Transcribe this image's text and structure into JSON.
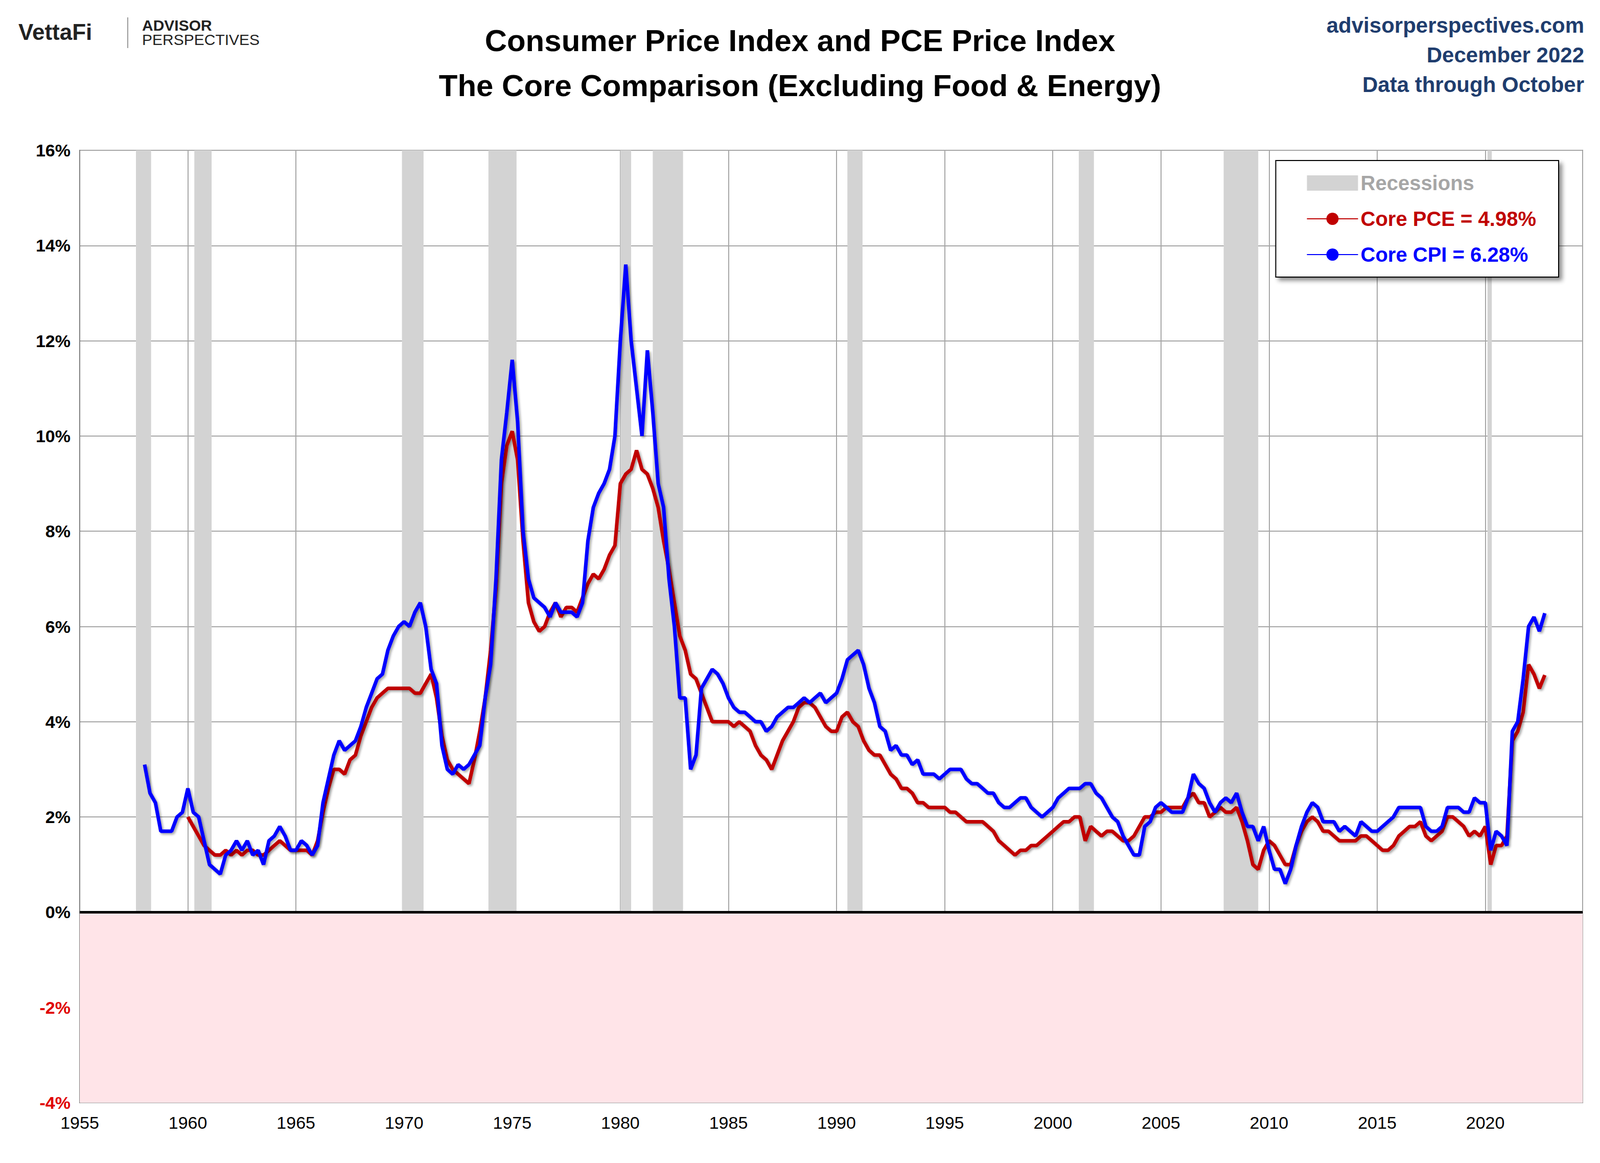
{
  "chart_data": {
    "type": "line",
    "title": "Consumer Price Index and PCE Price Index",
    "subtitle": "The Core Comparison (Excluding Food & Energy)",
    "annotations": [
      "VettaFi",
      "ADVISOR",
      "PERSPECTIVES",
      "advisorperspectives.com",
      "December 2022",
      "Data through October"
    ],
    "x": [
      1958,
      1958.25,
      1958.5,
      1958.75,
      1959,
      1959.25,
      1959.5,
      1959.75,
      1960,
      1960.25,
      1960.5,
      1960.75,
      1961,
      1961.25,
      1961.5,
      1961.75,
      1962,
      1962.25,
      1962.5,
      1962.75,
      1963,
      1963.25,
      1963.5,
      1963.75,
      1964,
      1964.25,
      1964.5,
      1964.75,
      1965,
      1965.25,
      1965.5,
      1965.75,
      1966,
      1966.25,
      1966.5,
      1966.75,
      1967,
      1967.25,
      1967.5,
      1967.75,
      1968,
      1968.25,
      1968.5,
      1968.75,
      1969,
      1969.25,
      1969.5,
      1969.75,
      1970,
      1970.25,
      1970.5,
      1970.75,
      1971,
      1971.25,
      1971.5,
      1971.75,
      1972,
      1972.25,
      1972.5,
      1972.75,
      1973,
      1973.25,
      1973.5,
      1973.75,
      1974,
      1974.25,
      1974.5,
      1974.75,
      1975,
      1975.25,
      1975.5,
      1975.75,
      1976,
      1976.25,
      1976.5,
      1976.75,
      1977,
      1977.25,
      1977.5,
      1977.75,
      1978,
      1978.25,
      1978.5,
      1978.75,
      1979,
      1979.25,
      1979.5,
      1979.75,
      1980,
      1980.25,
      1980.5,
      1980.75,
      1981,
      1981.25,
      1981.5,
      1981.75,
      1982,
      1982.25,
      1982.5,
      1982.75,
      1983,
      1983.25,
      1983.5,
      1983.75,
      1984,
      1984.25,
      1984.5,
      1984.75,
      1985,
      1985.25,
      1985.5,
      1985.75,
      1986,
      1986.25,
      1986.5,
      1986.75,
      1987,
      1987.25,
      1987.5,
      1987.75,
      1988,
      1988.25,
      1988.5,
      1988.75,
      1989,
      1989.25,
      1989.5,
      1989.75,
      1990,
      1990.25,
      1990.5,
      1990.75,
      1991,
      1991.25,
      1991.5,
      1991.75,
      1992,
      1992.25,
      1992.5,
      1992.75,
      1993,
      1993.25,
      1993.5,
      1993.75,
      1994,
      1994.25,
      1994.5,
      1994.75,
      1995,
      1995.25,
      1995.5,
      1995.75,
      1996,
      1996.25,
      1996.5,
      1996.75,
      1997,
      1997.25,
      1997.5,
      1997.75,
      1998,
      1998.25,
      1998.5,
      1998.75,
      1999,
      1999.25,
      1999.5,
      1999.75,
      2000,
      2000.25,
      2000.5,
      2000.75,
      2001,
      2001.25,
      2001.5,
      2001.75,
      2002,
      2002.25,
      2002.5,
      2002.75,
      2003,
      2003.25,
      2003.5,
      2003.75,
      2004,
      2004.25,
      2004.5,
      2004.75,
      2005,
      2005.25,
      2005.5,
      2005.75,
      2006,
      2006.25,
      2006.5,
      2006.75,
      2007,
      2007.25,
      2007.5,
      2007.75,
      2008,
      2008.25,
      2008.5,
      2008.75,
      2009,
      2009.25,
      2009.5,
      2009.75,
      2010,
      2010.25,
      2010.5,
      2010.75,
      2011,
      2011.25,
      2011.5,
      2011.75,
      2012,
      2012.25,
      2012.5,
      2012.75,
      2013,
      2013.25,
      2013.5,
      2013.75,
      2014,
      2014.25,
      2014.5,
      2014.75,
      2015,
      2015.25,
      2015.5,
      2015.75,
      2016,
      2016.25,
      2016.5,
      2016.75,
      2017,
      2017.25,
      2017.5,
      2017.75,
      2018,
      2018.25,
      2018.5,
      2018.75,
      2019,
      2019.25,
      2019.5,
      2019.75,
      2020,
      2020.25,
      2020.5,
      2020.75,
      2021,
      2021.25,
      2021.5,
      2021.75,
      2022,
      2022.25,
      2022.5,
      2022.75
    ],
    "series": [
      {
        "name": "Core PCE = 4.98%",
        "color": "#c00000",
        "values": [
          null,
          null,
          null,
          null,
          null,
          null,
          null,
          null,
          2.0,
          1.8,
          1.6,
          1.4,
          1.3,
          1.2,
          1.2,
          1.3,
          1.2,
          1.3,
          1.2,
          1.3,
          1.3,
          1.2,
          1.2,
          1.3,
          1.4,
          1.5,
          1.4,
          1.3,
          1.3,
          1.3,
          1.3,
          1.2,
          1.5,
          2.1,
          2.6,
          3.0,
          3.0,
          2.9,
          3.2,
          3.3,
          3.7,
          4.0,
          4.3,
          4.5,
          4.6,
          4.7,
          4.7,
          4.7,
          4.7,
          4.7,
          4.6,
          4.6,
          4.8,
          5.0,
          4.5,
          3.7,
          3.2,
          3.0,
          2.9,
          2.8,
          2.7,
          3.2,
          3.8,
          4.5,
          5.5,
          6.8,
          9.0,
          9.8,
          10.1,
          9.5,
          7.8,
          6.5,
          6.1,
          5.9,
          6.0,
          6.3,
          6.5,
          6.2,
          6.4,
          6.4,
          6.3,
          6.6,
          6.9,
          7.1,
          7.0,
          7.2,
          7.5,
          7.7,
          9.0,
          9.2,
          9.3,
          9.7,
          9.3,
          9.2,
          8.9,
          8.5,
          7.8,
          7.2,
          6.5,
          5.8,
          5.5,
          5.0,
          4.9,
          4.6,
          4.3,
          4.0,
          4.0,
          4.0,
          4.0,
          3.9,
          4.0,
          3.9,
          3.8,
          3.5,
          3.3,
          3.2,
          3.0,
          3.3,
          3.6,
          3.8,
          4.0,
          4.3,
          4.4,
          4.4,
          4.3,
          4.1,
          3.9,
          3.8,
          3.8,
          4.1,
          4.2,
          4.0,
          3.9,
          3.6,
          3.4,
          3.3,
          3.3,
          3.1,
          2.9,
          2.8,
          2.6,
          2.6,
          2.5,
          2.3,
          2.3,
          2.2,
          2.2,
          2.2,
          2.2,
          2.1,
          2.1,
          2.0,
          1.9,
          1.9,
          1.9,
          1.9,
          1.8,
          1.7,
          1.5,
          1.4,
          1.3,
          1.2,
          1.3,
          1.3,
          1.4,
          1.4,
          1.5,
          1.6,
          1.7,
          1.8,
          1.9,
          1.9,
          2.0,
          2.0,
          1.5,
          1.8,
          1.7,
          1.6,
          1.7,
          1.7,
          1.6,
          1.5,
          1.5,
          1.6,
          1.8,
          2.0,
          2.0,
          2.1,
          2.1,
          2.2,
          2.2,
          2.2,
          2.2,
          2.4,
          2.5,
          2.3,
          2.3,
          2.0,
          2.1,
          2.2,
          2.1,
          2.1,
          2.2,
          1.9,
          1.5,
          1.0,
          0.9,
          1.3,
          1.5,
          1.4,
          1.2,
          1.0,
          1.0,
          1.4,
          1.7,
          1.9,
          2.0,
          1.9,
          1.7,
          1.7,
          1.6,
          1.5,
          1.5,
          1.5,
          1.5,
          1.6,
          1.6,
          1.5,
          1.4,
          1.3,
          1.3,
          1.4,
          1.6,
          1.7,
          1.8,
          1.8,
          1.9,
          1.6,
          1.5,
          1.6,
          1.7,
          2.0,
          2.0,
          1.9,
          1.8,
          1.6,
          1.7,
          1.6,
          1.8,
          1.0,
          1.4,
          1.4,
          1.6,
          3.6,
          3.8,
          4.2,
          5.2,
          5.0,
          4.7,
          4.98
        ]
      },
      {
        "name": "Core CPI = 6.28%",
        "color": "#0000ff",
        "values": [
          3.1,
          2.5,
          2.3,
          1.7,
          1.7,
          1.7,
          2.0,
          2.1,
          2.6,
          2.1,
          2.0,
          1.5,
          1.0,
          0.9,
          0.8,
          1.2,
          1.3,
          1.5,
          1.3,
          1.5,
          1.2,
          1.3,
          1.0,
          1.5,
          1.6,
          1.8,
          1.6,
          1.3,
          1.3,
          1.5,
          1.4,
          1.2,
          1.4,
          2.3,
          2.8,
          3.3,
          3.6,
          3.4,
          3.5,
          3.6,
          3.9,
          4.3,
          4.6,
          4.9,
          5.0,
          5.5,
          5.8,
          6.0,
          6.1,
          6.0,
          6.3,
          6.5,
          6.0,
          5.1,
          4.8,
          3.5,
          3.0,
          2.9,
          3.1,
          3.0,
          3.1,
          3.3,
          3.5,
          4.5,
          5.2,
          7.0,
          9.5,
          10.5,
          11.6,
          10.3,
          8.0,
          7.0,
          6.6,
          6.5,
          6.4,
          6.2,
          6.5,
          6.3,
          6.3,
          6.3,
          6.2,
          6.5,
          7.8,
          8.5,
          8.8,
          9.0,
          9.3,
          10.0,
          12.0,
          13.6,
          12.0,
          11.0,
          10.0,
          11.8,
          10.5,
          9.0,
          8.5,
          7.0,
          6.0,
          4.5,
          4.5,
          3.0,
          3.3,
          4.7,
          4.9,
          5.1,
          5.0,
          4.8,
          4.5,
          4.3,
          4.2,
          4.2,
          4.1,
          4.0,
          4.0,
          3.8,
          3.9,
          4.1,
          4.2,
          4.3,
          4.3,
          4.4,
          4.5,
          4.4,
          4.5,
          4.6,
          4.4,
          4.5,
          4.6,
          4.9,
          5.3,
          5.4,
          5.5,
          5.2,
          4.7,
          4.4,
          3.9,
          3.8,
          3.4,
          3.5,
          3.3,
          3.3,
          3.1,
          3.2,
          2.9,
          2.9,
          2.9,
          2.8,
          2.9,
          3.0,
          3.0,
          3.0,
          2.8,
          2.7,
          2.7,
          2.6,
          2.5,
          2.5,
          2.3,
          2.2,
          2.2,
          2.3,
          2.4,
          2.4,
          2.2,
          2.1,
          2.0,
          2.1,
          2.2,
          2.4,
          2.5,
          2.6,
          2.6,
          2.6,
          2.7,
          2.7,
          2.5,
          2.4,
          2.2,
          2.0,
          1.9,
          1.6,
          1.4,
          1.2,
          1.2,
          1.8,
          1.9,
          2.2,
          2.3,
          2.2,
          2.1,
          2.1,
          2.1,
          2.4,
          2.9,
          2.7,
          2.6,
          2.3,
          2.1,
          2.3,
          2.4,
          2.3,
          2.5,
          2.1,
          1.8,
          1.8,
          1.5,
          1.8,
          1.3,
          0.9,
          0.9,
          0.6,
          0.9,
          1.4,
          1.8,
          2.1,
          2.3,
          2.2,
          1.9,
          1.9,
          1.9,
          1.7,
          1.8,
          1.7,
          1.6,
          1.9,
          1.8,
          1.7,
          1.7,
          1.8,
          1.9,
          2.0,
          2.2,
          2.2,
          2.2,
          2.2,
          2.2,
          1.8,
          1.7,
          1.7,
          1.8,
          2.2,
          2.2,
          2.2,
          2.1,
          2.1,
          2.4,
          2.3,
          2.3,
          1.3,
          1.7,
          1.6,
          1.4,
          3.8,
          4.0,
          4.9,
          6.0,
          6.2,
          5.9,
          6.28
        ]
      }
    ],
    "recessions": {
      "name": "Recessions",
      "color": "#d3d3d3",
      "periods": [
        [
          1957.6,
          1958.3
        ],
        [
          1960.3,
          1961.1
        ],
        [
          1969.9,
          1970.9
        ],
        [
          1973.9,
          1975.2
        ],
        [
          1980.0,
          1980.5
        ],
        [
          1981.5,
          1982.9
        ],
        [
          1990.5,
          1991.2
        ],
        [
          2001.2,
          2001.9
        ],
        [
          2007.9,
          2009.5
        ],
        [
          2020.1,
          2020.3
        ]
      ]
    },
    "xlim": [
      1955,
      2024.5
    ],
    "xticks": [
      1955,
      1960,
      1965,
      1970,
      1975,
      1980,
      1985,
      1990,
      1995,
      2000,
      2005,
      2010,
      2015,
      2020
    ],
    "ylim": [
      -4,
      16
    ],
    "yticks": [
      {
        "value": -4,
        "label": "-4%"
      },
      {
        "value": -2,
        "label": "-2%"
      },
      {
        "value": 0,
        "label": "0%"
      },
      {
        "value": 2,
        "label": "2%"
      },
      {
        "value": 4,
        "label": "4%"
      },
      {
        "value": 6,
        "label": "6%"
      },
      {
        "value": 8,
        "label": "8%"
      },
      {
        "value": 10,
        "label": "10%"
      },
      {
        "value": 12,
        "label": "12%"
      },
      {
        "value": 14,
        "label": "14%"
      },
      {
        "value": 16,
        "label": "16%"
      }
    ],
    "grid": true,
    "legend": "top-right"
  }
}
